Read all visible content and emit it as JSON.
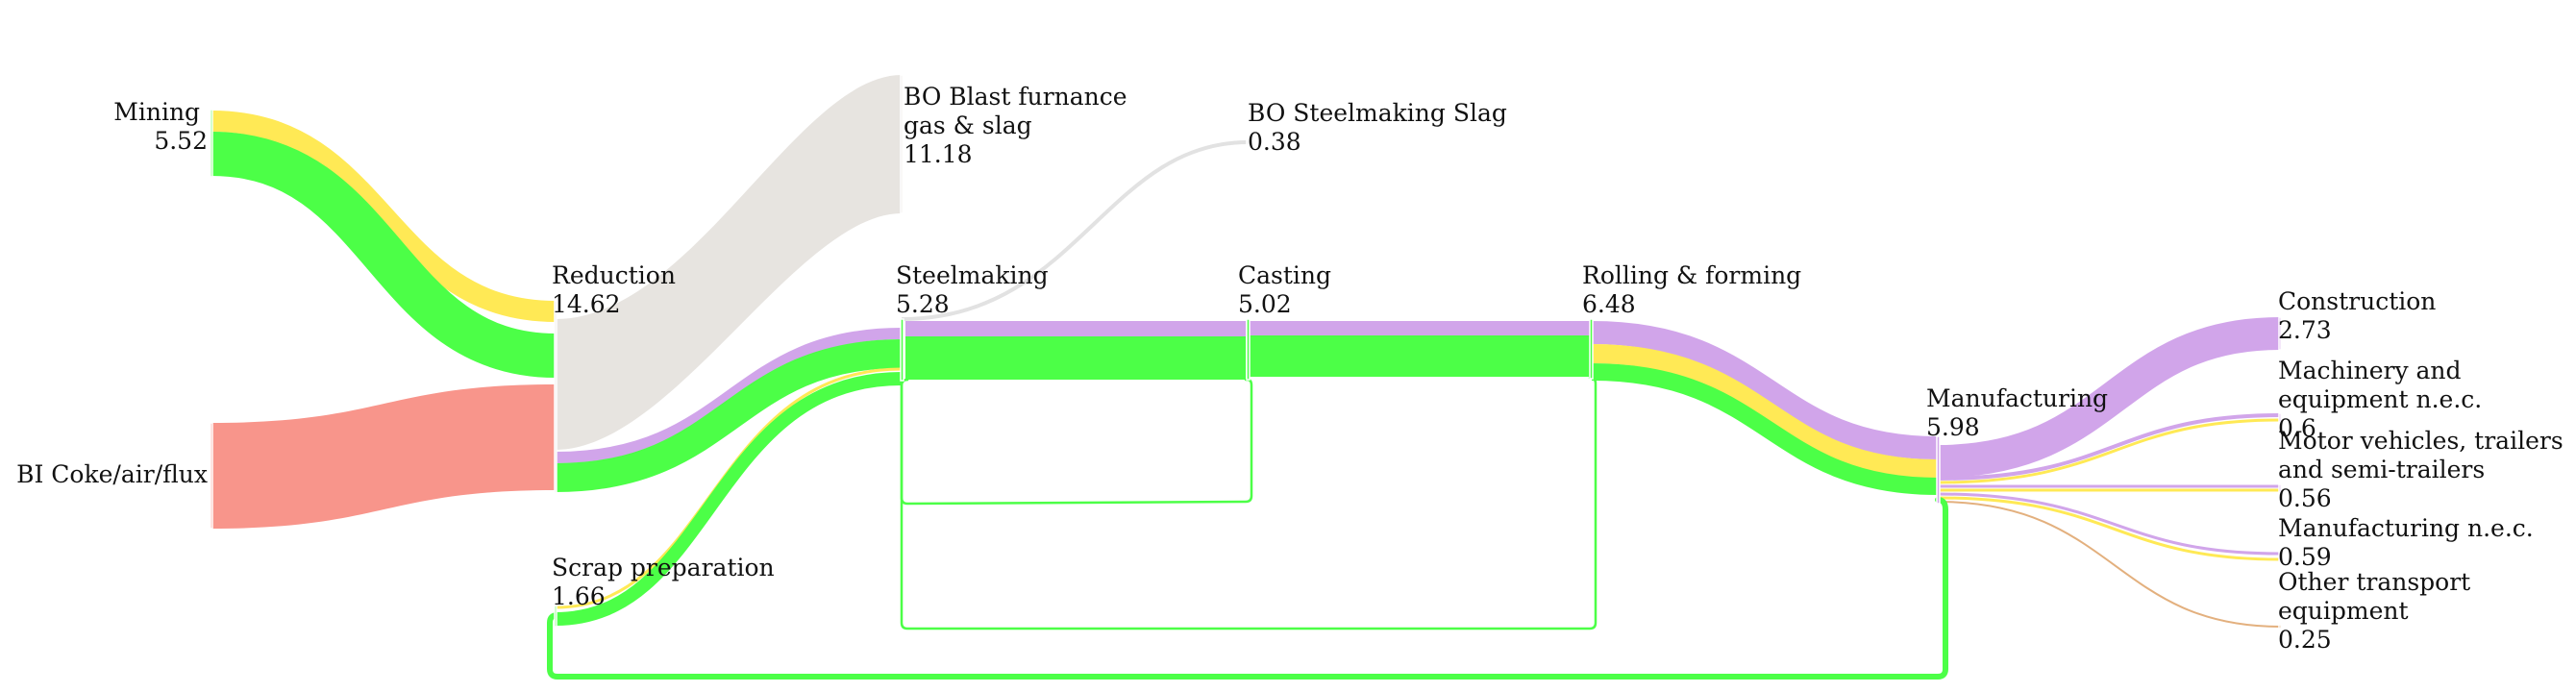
{
  "colors": {
    "iron": "#4cff47",
    "carbon": "#ffe955",
    "alloy": "#d1a5ea",
    "waste": "#e7e4e0",
    "coke": "#f8958b",
    "slag_line": "#e2e2e2",
    "other_transport": "#e3b07e",
    "recycle": "#4cff47"
  },
  "nodes": [
    {
      "id": "mining",
      "name": "Mining",
      "value": "5.52"
    },
    {
      "id": "coke",
      "name": "BI Coke/air/flux",
      "value": ""
    },
    {
      "id": "reduction",
      "name": "Reduction",
      "value": "14.62"
    },
    {
      "id": "scrap",
      "name": "Scrap preparation",
      "value": "1.66"
    },
    {
      "id": "bf_gas",
      "name": "BO Blast furnance gas & slag",
      "value": "11.18"
    },
    {
      "id": "steelmaking",
      "name": "Steelmaking",
      "value": "5.28"
    },
    {
      "id": "bo_slag",
      "name": "BO Steelmaking Slag",
      "value": "0.38"
    },
    {
      "id": "casting",
      "name": "Casting",
      "value": "5.02"
    },
    {
      "id": "rolling",
      "name": "Rolling & forming",
      "value": "6.48"
    },
    {
      "id": "manufacturing",
      "name": "Manufacturing",
      "value": "5.98"
    },
    {
      "id": "construction",
      "name": "Construction",
      "value": "2.73"
    },
    {
      "id": "machinery",
      "name": "Machinery and equipment n.e.c.",
      "value": "0.6"
    },
    {
      "id": "motor",
      "name": "Motor vehicles, trailers and semi-trailers",
      "value": "0.56"
    },
    {
      "id": "manuf_nec",
      "name": "Manufacturing n.e.c.",
      "value": "0.59"
    },
    {
      "id": "other_transport",
      "name": "Other transport equipment",
      "value": "0.25"
    }
  ]
}
